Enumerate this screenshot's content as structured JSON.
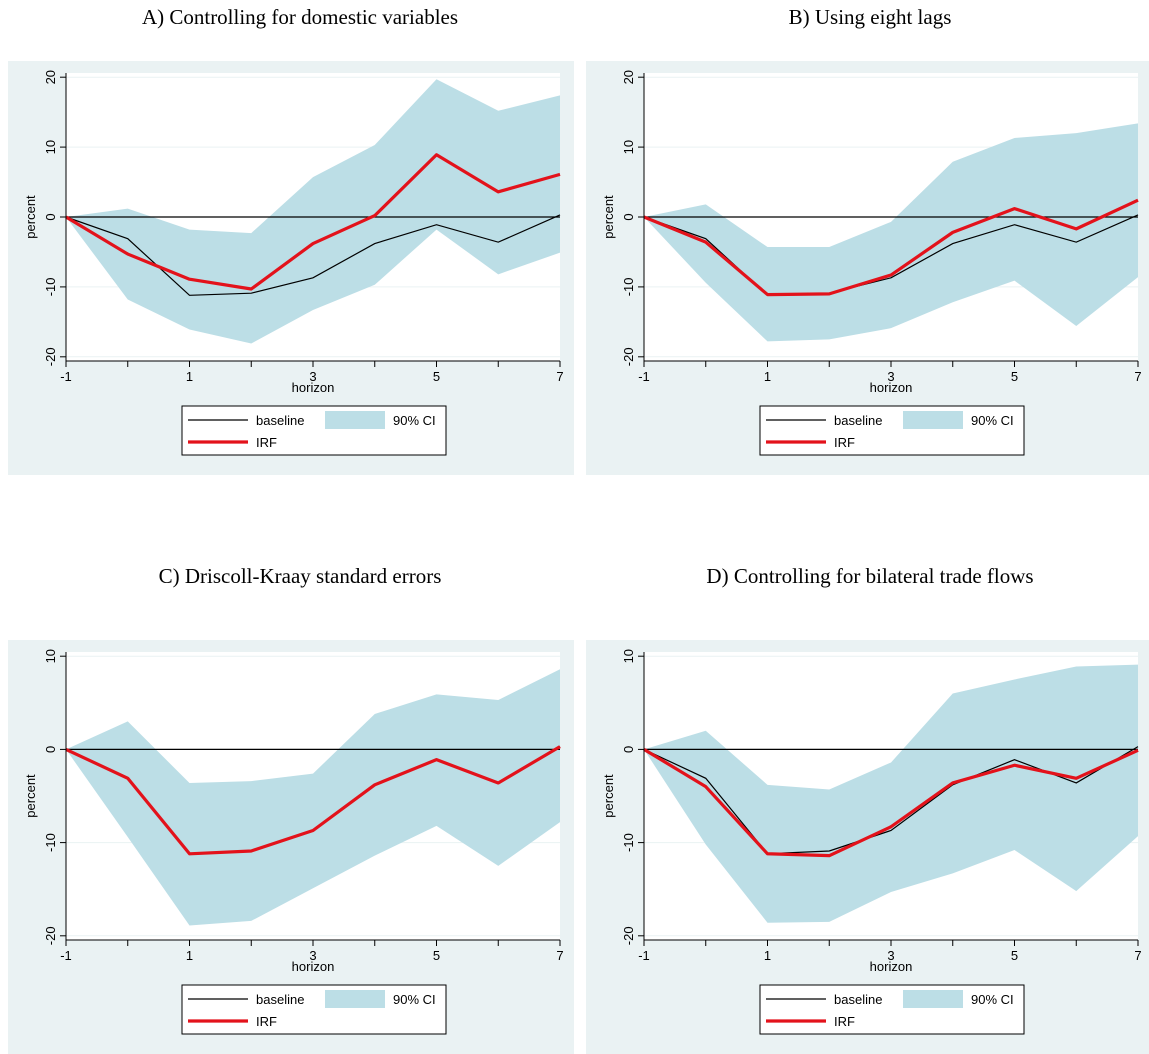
{
  "colors": {
    "panel_bg": "#eaf2f3",
    "ci_fill": "#bcdee6",
    "irf_line": "#e3121b",
    "baseline_line": "#000000",
    "grid": "#eaf2f3"
  },
  "legend": {
    "baseline": "baseline",
    "ci": "90% CI",
    "irf": "IRF"
  },
  "chart_data": [
    {
      "type": "area",
      "title": "A) Controlling for domestic variables",
      "xlabel": "horizon",
      "ylabel": "percent",
      "x": [
        -1,
        0,
        1,
        2,
        3,
        4,
        5,
        6,
        7
      ],
      "xticks": [
        "-1",
        "1",
        "3",
        "5",
        "7"
      ],
      "yticks": [
        "-20",
        "-10",
        "0",
        "10",
        "20"
      ],
      "ylim": [
        -20,
        20
      ],
      "xlim": [
        -1,
        7
      ],
      "legend_position": "bottom",
      "series": [
        {
          "name": "90% CI",
          "kind": "band",
          "upper": [
            0,
            1.2,
            -1.8,
            -2.3,
            5.7,
            10.3,
            19.7,
            15.2,
            17.4
          ],
          "lower": [
            0,
            -11.8,
            -16.1,
            -18.1,
            -13.3,
            -9.7,
            -1.8,
            -8.2,
            -5.1
          ]
        },
        {
          "name": "baseline",
          "kind": "line",
          "values": [
            0,
            -3.1,
            -11.2,
            -10.9,
            -8.7,
            -3.8,
            -1.1,
            -3.6,
            0.3
          ]
        },
        {
          "name": "IRF",
          "kind": "line",
          "values": [
            0,
            -5.3,
            -8.9,
            -10.3,
            -3.8,
            0.2,
            8.9,
            3.6,
            6.1
          ]
        }
      ]
    },
    {
      "type": "area",
      "title": "B) Using eight lags",
      "xlabel": "horizon",
      "ylabel": "percent",
      "x": [
        -1,
        0,
        1,
        2,
        3,
        4,
        5,
        6,
        7
      ],
      "xticks": [
        "-1",
        "1",
        "3",
        "5",
        "7"
      ],
      "yticks": [
        "-20",
        "-10",
        "0",
        "10",
        "20"
      ],
      "ylim": [
        -20,
        20
      ],
      "xlim": [
        -1,
        7
      ],
      "legend_position": "bottom",
      "series": [
        {
          "name": "90% CI",
          "kind": "band",
          "upper": [
            0,
            1.8,
            -4.3,
            -4.3,
            -0.7,
            7.9,
            11.3,
            12.0,
            13.4
          ],
          "lower": [
            0,
            -9.4,
            -17.8,
            -17.5,
            -15.9,
            -12.2,
            -9.1,
            -15.6,
            -8.6
          ]
        },
        {
          "name": "baseline",
          "kind": "line",
          "values": [
            0,
            -3.1,
            -11.2,
            -10.9,
            -8.7,
            -3.8,
            -1.1,
            -3.6,
            0.3
          ]
        },
        {
          "name": "IRF",
          "kind": "line",
          "values": [
            0,
            -3.6,
            -11.1,
            -11.0,
            -8.3,
            -2.2,
            1.2,
            -1.7,
            2.4
          ]
        }
      ]
    },
    {
      "type": "area",
      "title": "C) Driscoll-Kraay standard errors",
      "xlabel": "horizon",
      "ylabel": "percent",
      "x": [
        -1,
        0,
        1,
        2,
        3,
        4,
        5,
        6,
        7
      ],
      "xticks": [
        "-1",
        "1",
        "3",
        "5",
        "7"
      ],
      "yticks": [
        "-20",
        "-10",
        "0",
        "10"
      ],
      "ylim": [
        -20,
        10
      ],
      "xlim": [
        -1,
        7
      ],
      "legend_position": "bottom",
      "series": [
        {
          "name": "90% CI",
          "kind": "band",
          "upper": [
            0,
            3.0,
            -3.6,
            -3.4,
            -2.6,
            3.8,
            5.9,
            5.3,
            8.6
          ],
          "lower": [
            0,
            -9.4,
            -18.9,
            -18.4,
            -14.9,
            -11.4,
            -8.2,
            -12.5,
            -7.8
          ]
        },
        {
          "name": "baseline",
          "kind": "line",
          "values": [
            0,
            -3.1,
            -11.2,
            -10.9,
            -8.7,
            -3.8,
            -1.1,
            -3.6,
            0.3
          ]
        },
        {
          "name": "IRF",
          "kind": "line",
          "values": [
            0,
            -3.1,
            -11.2,
            -10.9,
            -8.7,
            -3.8,
            -1.1,
            -3.6,
            0.3
          ]
        }
      ]
    },
    {
      "type": "area",
      "title": "D) Controlling for bilateral trade flows",
      "xlabel": "horizon",
      "ylabel": "percent",
      "x": [
        -1,
        0,
        1,
        2,
        3,
        4,
        5,
        6,
        7
      ],
      "xticks": [
        "-1",
        "1",
        "3",
        "5",
        "7"
      ],
      "yticks": [
        "-20",
        "-10",
        "0",
        "10"
      ],
      "ylim": [
        -20,
        10
      ],
      "xlim": [
        -1,
        7
      ],
      "legend_position": "bottom",
      "series": [
        {
          "name": "90% CI",
          "kind": "band",
          "upper": [
            0,
            2.0,
            -3.8,
            -4.3,
            -1.4,
            6.0,
            7.5,
            8.9,
            9.1
          ],
          "lower": [
            0,
            -10.2,
            -18.6,
            -18.5,
            -15.3,
            -13.3,
            -10.8,
            -15.2,
            -9.3
          ]
        },
        {
          "name": "baseline",
          "kind": "line",
          "values": [
            0,
            -3.1,
            -11.2,
            -10.9,
            -8.7,
            -3.8,
            -1.1,
            -3.6,
            0.3
          ]
        },
        {
          "name": "IRF",
          "kind": "line",
          "values": [
            0,
            -4.0,
            -11.2,
            -11.4,
            -8.3,
            -3.6,
            -1.7,
            -3.1,
            -0.1
          ]
        }
      ]
    }
  ]
}
